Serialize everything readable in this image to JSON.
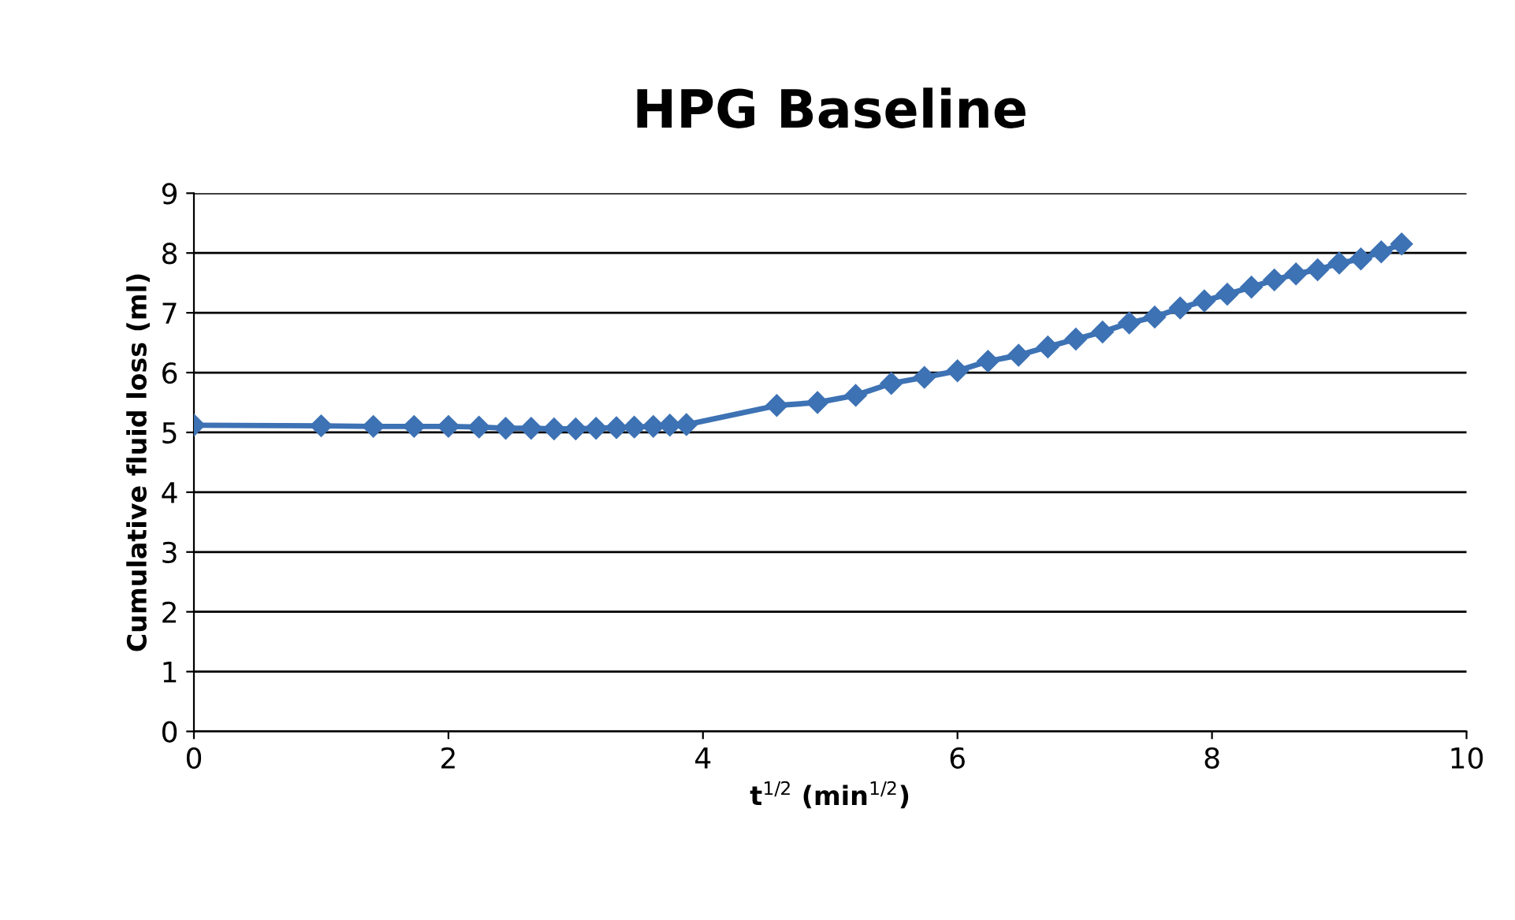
{
  "chart_data": {
    "type": "line",
    "title": "HPG Baseline",
    "xlabel": "t$^{1/2}$ (min$^{1/2}$)",
    "ylabel": "Cumulative fluid loss (ml)",
    "xlim": [
      0,
      10
    ],
    "xticks": [
      0,
      2,
      4,
      6,
      8,
      10
    ],
    "ylim": [
      0,
      9
    ],
    "yticks": [
      0,
      1,
      2,
      3,
      4,
      5,
      6,
      7,
      8,
      9
    ],
    "grid": "y",
    "marker": "diamond",
    "line_style": "solid",
    "series": [
      {
        "color": "#3d72b4",
        "x": [
          0,
          1,
          1.41,
          1.73,
          2,
          2.24,
          2.45,
          2.65,
          2.83,
          3,
          3.16,
          3.32,
          3.46,
          3.61,
          3.74,
          3.87,
          4.58,
          4.9,
          5.2,
          5.48,
          5.74,
          6,
          6.24,
          6.48,
          6.71,
          6.93,
          7.14,
          7.35,
          7.55,
          7.75,
          7.94,
          8.12,
          8.31,
          8.49,
          8.66,
          8.83,
          9,
          9.17,
          9.33,
          9.49
        ],
        "values": [
          5.12,
          5.11,
          5.1,
          5.1,
          5.1,
          5.09,
          5.07,
          5.07,
          5.06,
          5.06,
          5.07,
          5.08,
          5.09,
          5.1,
          5.12,
          5.13,
          5.45,
          5.5,
          5.62,
          5.82,
          5.92,
          6.03,
          6.19,
          6.29,
          6.43,
          6.56,
          6.68,
          6.83,
          6.93,
          7.08,
          7.2,
          7.31,
          7.43,
          7.55,
          7.65,
          7.72,
          7.83,
          7.9,
          8.02,
          8.15
        ]
      }
    ]
  }
}
